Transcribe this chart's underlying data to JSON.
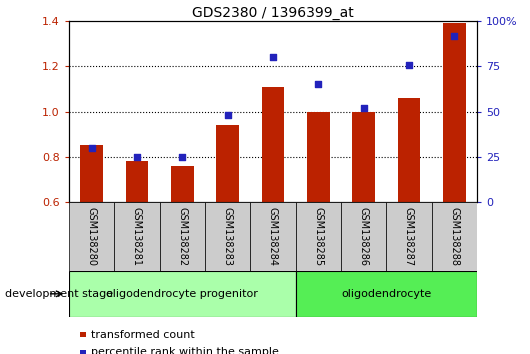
{
  "title": "GDS2380 / 1396399_at",
  "samples": [
    "GSM138280",
    "GSM138281",
    "GSM138282",
    "GSM138283",
    "GSM138284",
    "GSM138285",
    "GSM138286",
    "GSM138287",
    "GSM138288"
  ],
  "transformed_count": [
    0.85,
    0.78,
    0.76,
    0.94,
    1.11,
    1.0,
    1.0,
    1.06,
    1.39
  ],
  "percentile_rank": [
    30,
    25,
    25,
    48,
    80,
    65,
    52,
    76,
    92
  ],
  "ylim_left": [
    0.6,
    1.4
  ],
  "ylim_right": [
    0,
    100
  ],
  "yticks_left": [
    0.6,
    0.8,
    1.0,
    1.2,
    1.4
  ],
  "yticks_right": [
    0,
    25,
    50,
    75,
    100
  ],
  "ytick_labels_right": [
    "0",
    "25",
    "50",
    "75",
    "100%"
  ],
  "bar_color": "#bb2200",
  "dot_color": "#2222bb",
  "groups": [
    {
      "label": "oligodendrocyte progenitor",
      "start": 0,
      "end": 4,
      "color": "#aaffaa"
    },
    {
      "label": "oligodendrocyte",
      "start": 5,
      "end": 8,
      "color": "#55ee55"
    }
  ],
  "group_stage_label": "development stage",
  "legend_bar_label": "transformed count",
  "legend_dot_label": "percentile rank within the sample",
  "label_box_color": "#cccccc",
  "bar_width": 0.5
}
